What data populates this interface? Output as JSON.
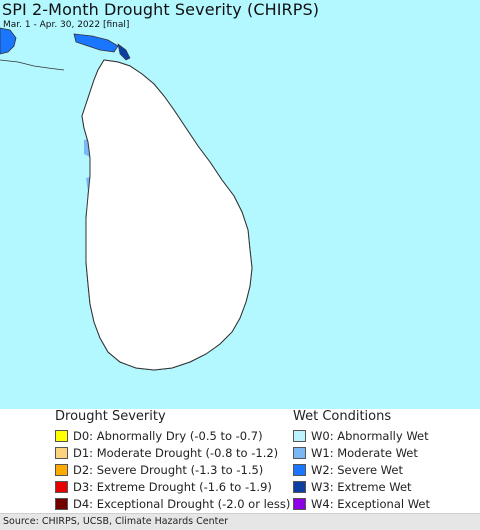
{
  "map": {
    "title": "SPI 2-Month Drought Severity (CHIRPS)",
    "subtitle": "Mar. 1 - Apr. 30, 2022 [final]",
    "colors": {
      "water": "#b3f7ff",
      "land_neutral": "#ffffff",
      "boundary": "#555555",
      "coast": "#333333"
    }
  },
  "legend": {
    "drought": {
      "heading": "Drought Severity",
      "items": [
        {
          "label": "D0: Abnormally Dry (-0.5 to -0.7)",
          "color": "#ffff00"
        },
        {
          "label": "D1: Moderate Drought (-0.8 to -1.2)",
          "color": "#fcd37f"
        },
        {
          "label": "D2: Severe Drought (-1.3 to -1.5)",
          "color": "#ffaa00"
        },
        {
          "label": "D3: Extreme Drought (-1.6 to -1.9)",
          "color": "#e60000"
        },
        {
          "label": "D4: Exceptional Drought (-2.0 or less)",
          "color": "#730000"
        }
      ]
    },
    "wet": {
      "heading": "Wet Conditions",
      "items": [
        {
          "label": "W0: Abnormally Wet",
          "color": "#bdf2ff"
        },
        {
          "label": "W1: Moderate Wet",
          "color": "#7ab8f5"
        },
        {
          "label": "W2: Severe Wet",
          "color": "#1a75ff"
        },
        {
          "label": "W3: Extreme Wet",
          "color": "#0d3fa3"
        },
        {
          "label": "W4: Exceptional Wet",
          "color": "#8f00e6"
        }
      ]
    }
  },
  "footer": {
    "source": "Source: CHIRPS, UCSB, Climate Hazards Center"
  }
}
